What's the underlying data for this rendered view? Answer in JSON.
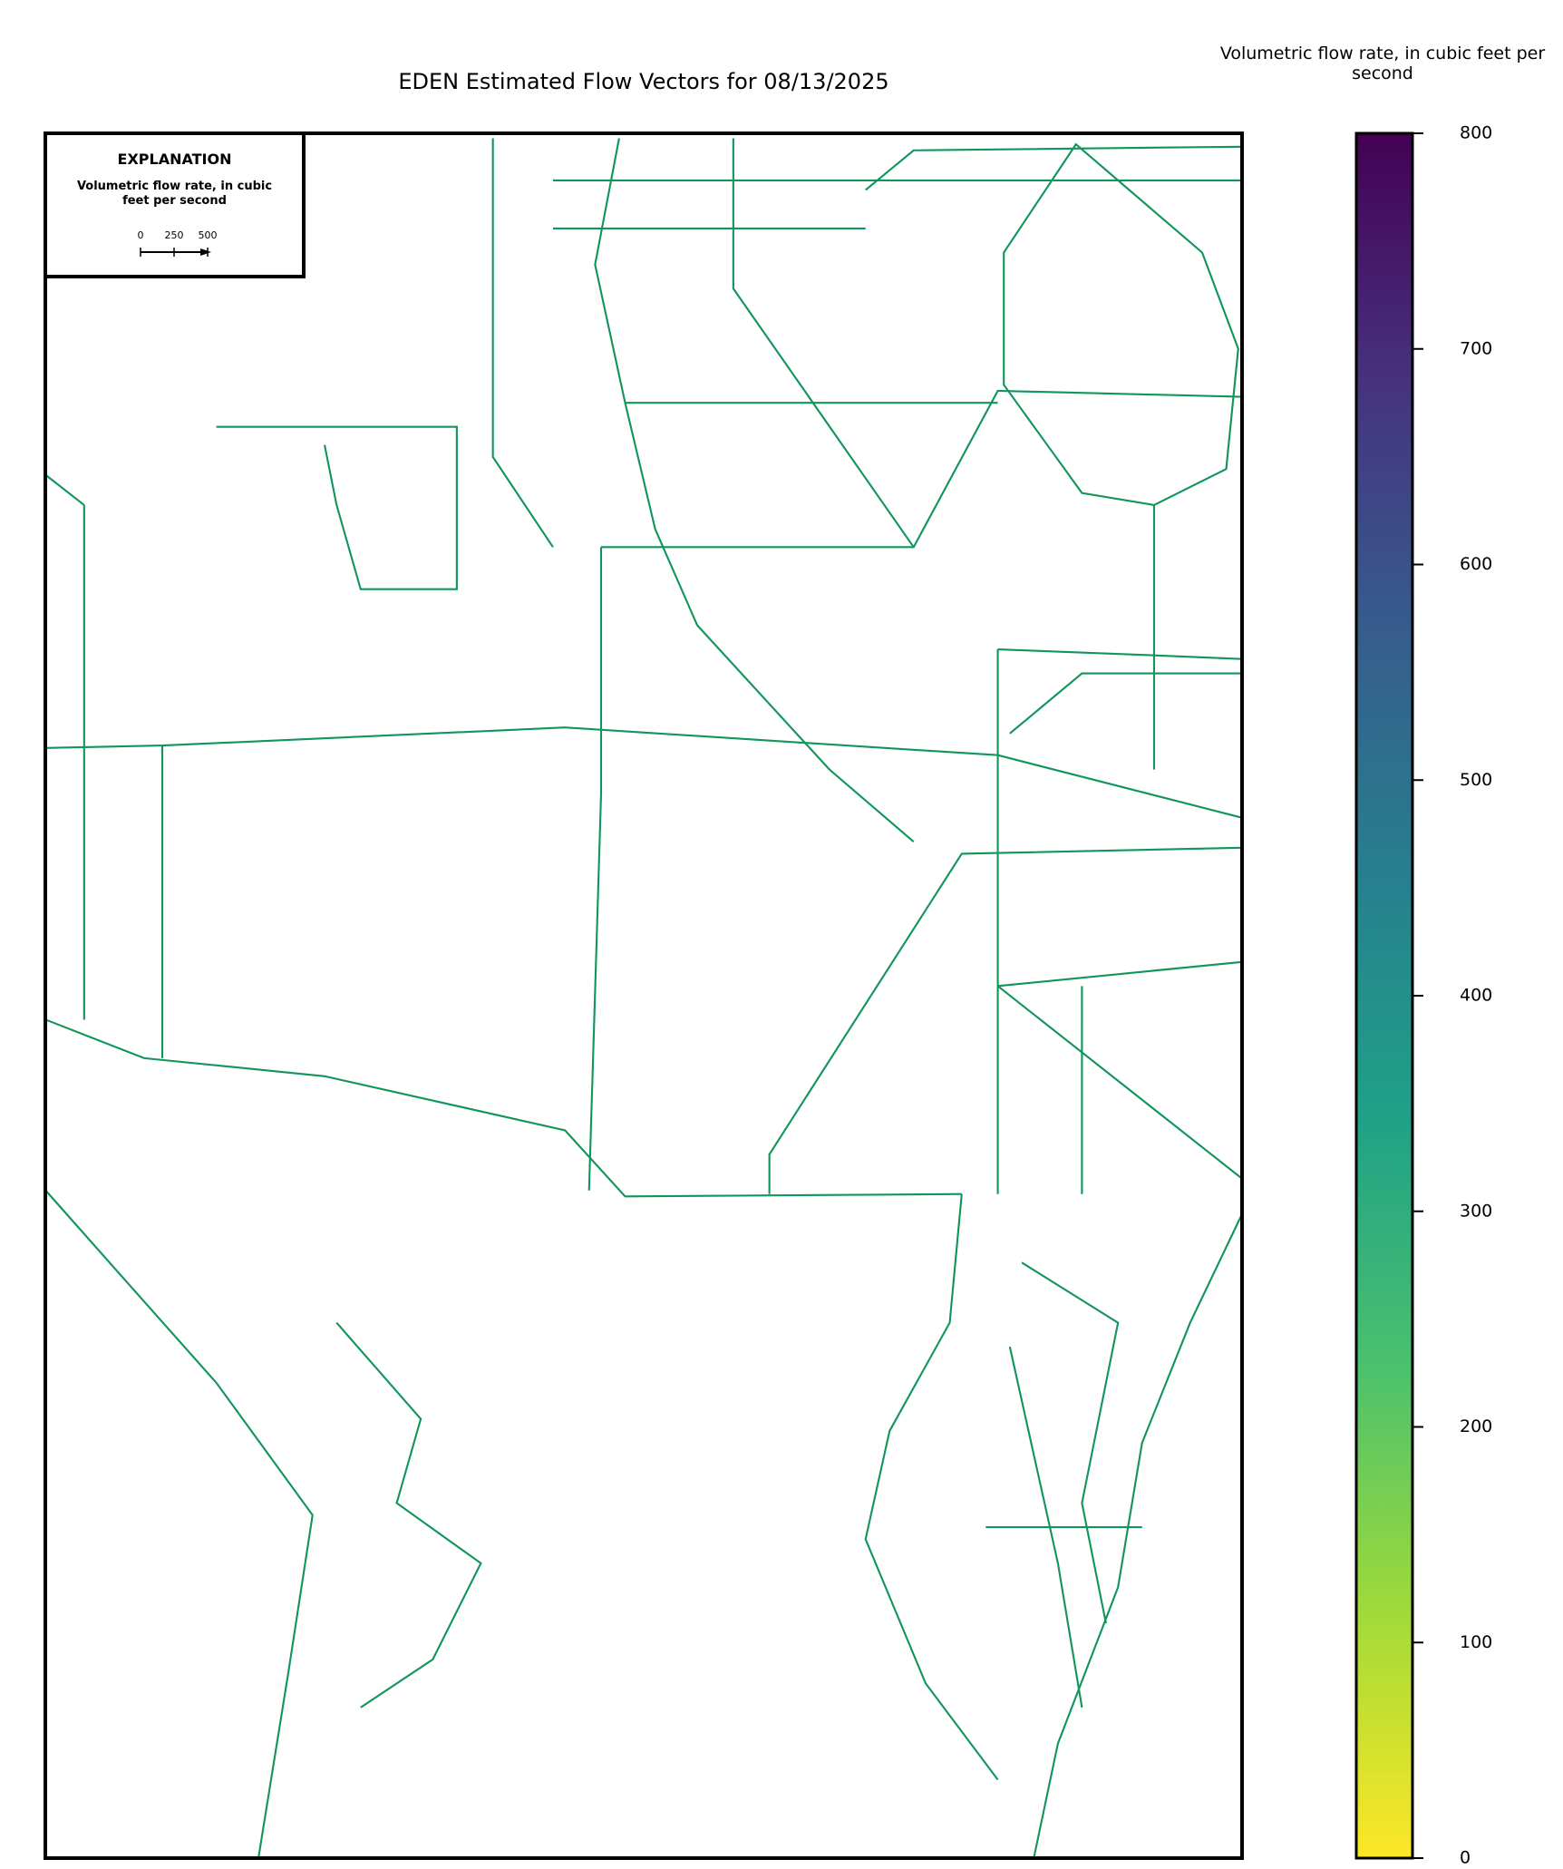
{
  "title": "EDEN Estimated Flow Vectors for 08/13/2025",
  "explanation": {
    "title": "EXPLANATION",
    "label": "Volumetric flow rate, in cubic feet per second",
    "scale_ticks": [
      0,
      250,
      500
    ]
  },
  "colorbar": {
    "label": "Volumetric flow rate, in cubic feet per second",
    "lim": [
      0,
      800
    ],
    "ticks": [
      0,
      100,
      200,
      300,
      400,
      500,
      600,
      700,
      800
    ],
    "colors": [
      "#fde725",
      "#a0da39",
      "#4ac16d",
      "#1fa187",
      "#277f8e",
      "#365c8d",
      "#46327e",
      "#440154"
    ]
  }
}
